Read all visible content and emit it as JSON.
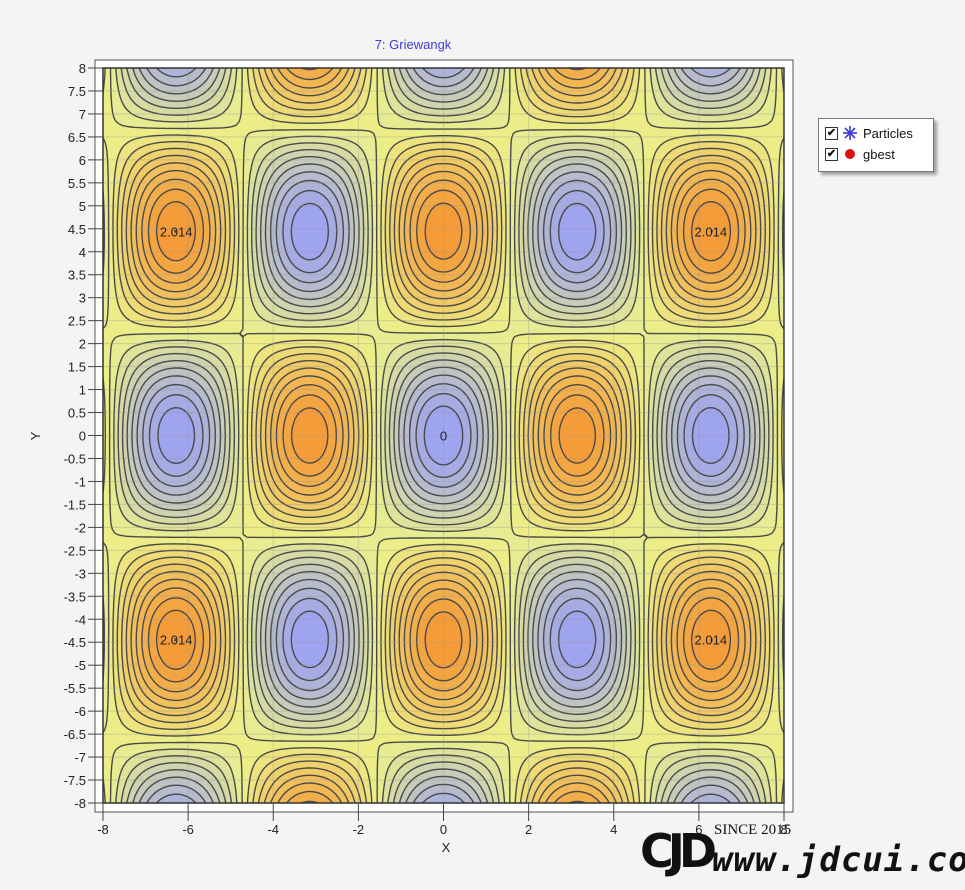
{
  "chart_data": {
    "type": "contour",
    "title": "7: Griewangk",
    "function": "Griewangk",
    "xlabel": "X",
    "ylabel": "Y",
    "xlim": [
      -8,
      8
    ],
    "ylim": [
      -8,
      8
    ],
    "x_ticks": [
      "-8",
      "-6",
      "-4",
      "-2",
      "0",
      "2",
      "4",
      "6",
      "8"
    ],
    "y_ticks": [
      "8",
      "7.5",
      "7",
      "6.5",
      "6",
      "5.5",
      "5",
      "4.5",
      "4",
      "3.5",
      "3",
      "2.5",
      "2",
      "1.5",
      "1",
      "0.5",
      "0",
      "-0.5",
      "-1",
      "-1.5",
      "-2",
      "-2.5",
      "-3",
      "-3.5",
      "-4",
      "-4.5",
      "-5",
      "-5.5",
      "-6",
      "-6.5",
      "-7",
      "-7.5",
      "-8"
    ],
    "contour_levels": [
      "0",
      "0.101",
      "0.201",
      "0.302",
      "0.403",
      "0.504",
      "0.604",
      "0.705",
      "0.806",
      "0.906",
      "1.007",
      "1.108",
      "1.208",
      "1.309",
      "1.41",
      "1.511",
      "1.611",
      "1.712",
      "1.813",
      "1.913",
      "2.014"
    ],
    "peak_labels": [
      {
        "x": -6.28,
        "y": 4.44,
        "text": "2.014"
      },
      {
        "x": 6.28,
        "y": 4.44,
        "text": "2.014"
      },
      {
        "x": -6.28,
        "y": -4.44,
        "text": "2.014"
      },
      {
        "x": 6.28,
        "y": -4.44,
        "text": "2.014"
      },
      {
        "x": 0,
        "y": 0,
        "text": "0"
      }
    ],
    "colormap": {
      "low": "#9aa0f2",
      "mid": "#ecf08a",
      "high": "#f59432"
    },
    "grid": true,
    "legend_position": "right",
    "legend": [
      {
        "label": "Particles",
        "checked": true,
        "marker": "star",
        "color": "#3a3ad8"
      },
      {
        "label": "gbest",
        "checked": true,
        "marker": "circle",
        "color": "#dd1111"
      }
    ]
  },
  "legend": {
    "items": [
      {
        "label": "Particles",
        "check": "✔"
      },
      {
        "label": "gbest",
        "check": "✔"
      }
    ]
  },
  "watermark": {
    "logo": "CJD",
    "since": "SINCE 2015",
    "url": "www.jdcui.com"
  }
}
